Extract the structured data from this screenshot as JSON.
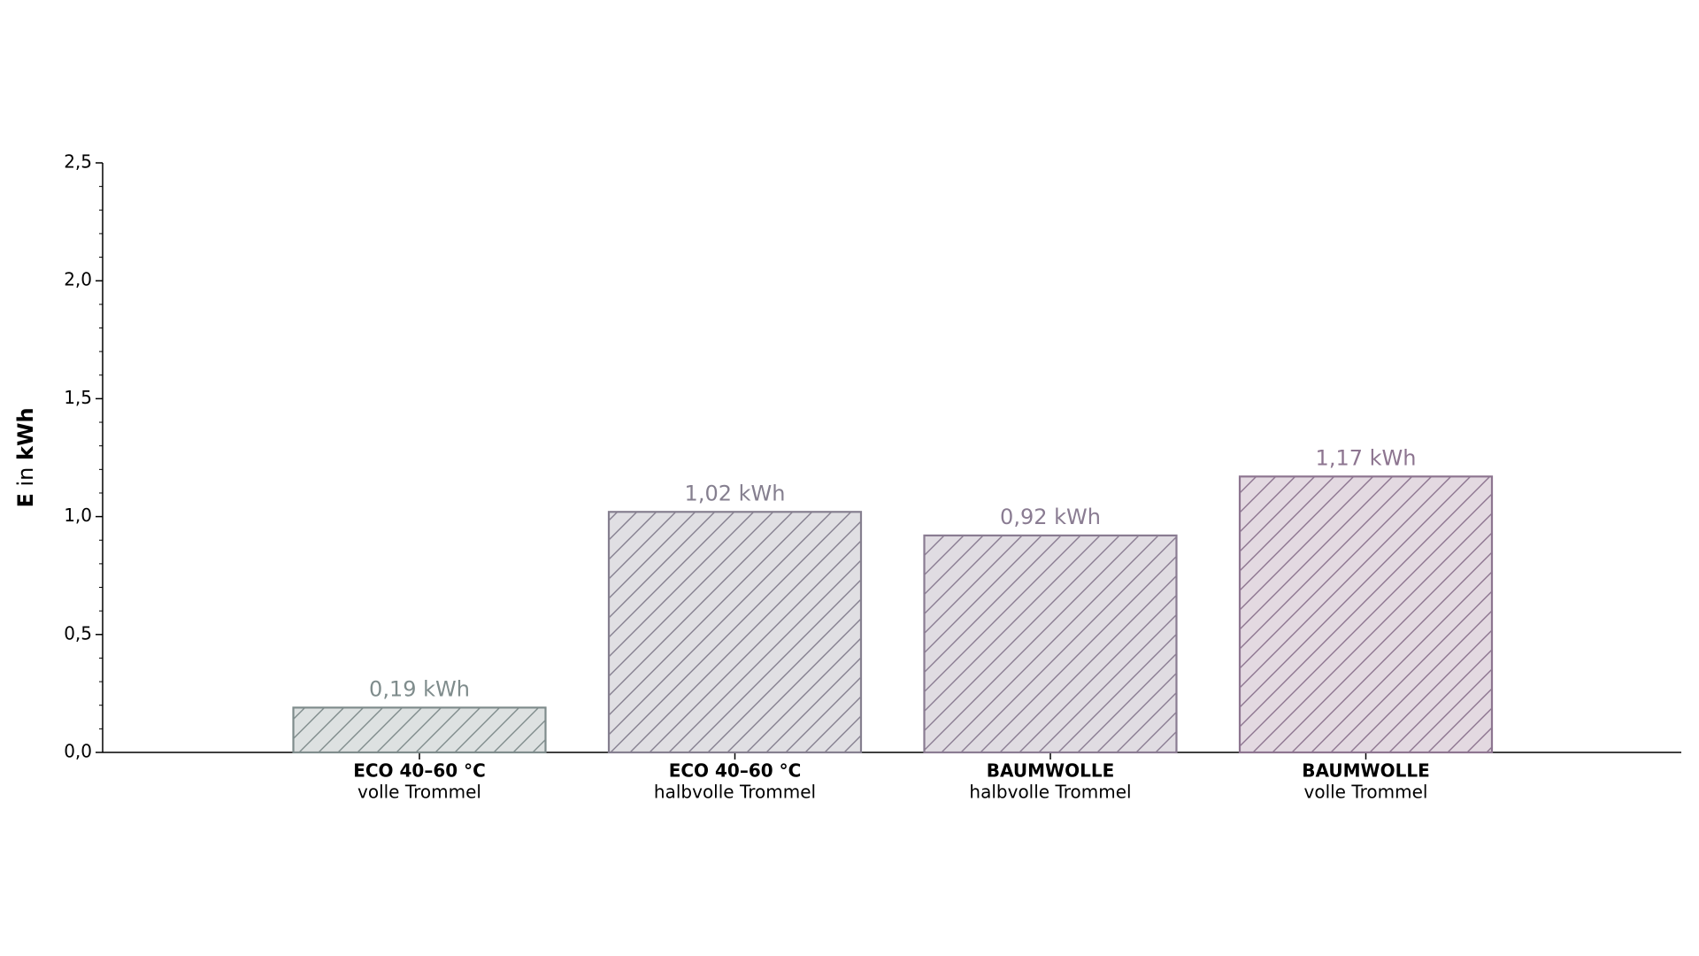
{
  "chart_data": {
    "type": "bar",
    "ylabel": {
      "symbol": "E",
      "text": "in",
      "unit": "kWh"
    },
    "categories": [
      [
        "ECO 40–60 °C",
        "volle Trommel"
      ],
      [
        "ECO 40–60 °C",
        "halbvolle Trommel"
      ],
      [
        "BAUMWOLLE",
        "halbvolle Trommel"
      ],
      [
        "BAUMWOLLE",
        "volle Trommel"
      ]
    ],
    "values": [
      0.19,
      1.02,
      0.92,
      1.17
    ],
    "value_labels": [
      "0,19 kWh",
      "1,02 kWh",
      "0,92 kWh",
      "1,17 kWh"
    ],
    "colors": [
      "#dde1e1",
      "#e0dfe3",
      "#e0dce2",
      "#e3d9e1"
    ],
    "edge_colors": [
      "#7f8c8c",
      "#857f8f",
      "#8a7c92",
      "#8d7590"
    ],
    "hatch": "/",
    "ylim": [
      0,
      2.5
    ],
    "yticks": [
      {
        "value": 0,
        "label": "0,0"
      },
      {
        "value": 0.5,
        "label": "0,5"
      },
      {
        "value": 1,
        "label": "1,0"
      },
      {
        "value": 1.5,
        "label": "1,5"
      },
      {
        "value": 2,
        "label": "2,0"
      },
      {
        "value": 2.5,
        "label": "2,5"
      }
    ],
    "yminorticks": [
      0.1,
      0.2,
      0.3,
      0.4,
      0.6,
      0.7,
      0.8,
      0.9,
      1.1,
      1.2,
      1.3,
      1.4,
      1.6,
      1.7,
      1.8,
      1.9,
      2.1,
      2.2,
      2.3,
      2.4
    ]
  }
}
